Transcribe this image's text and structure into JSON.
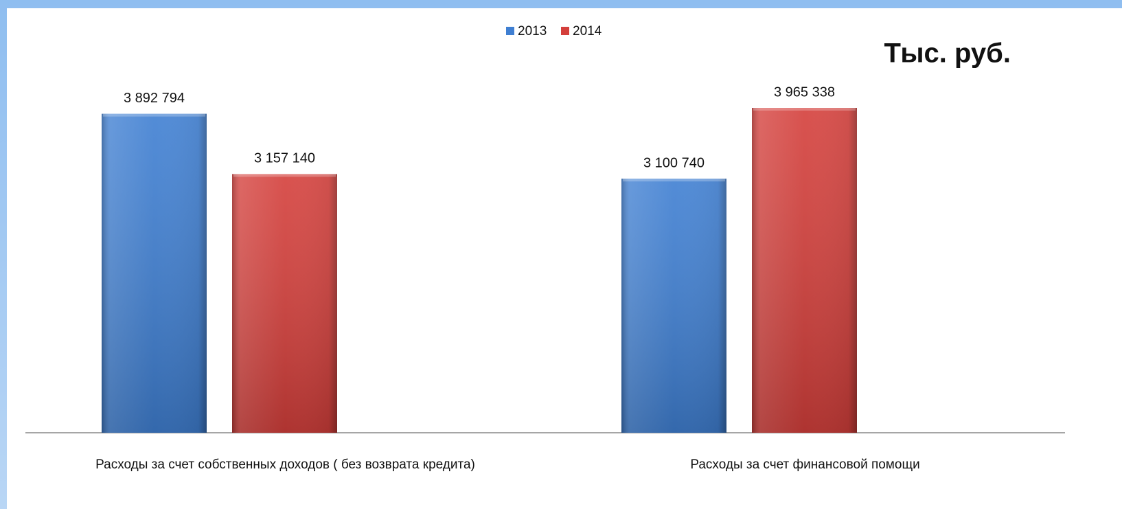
{
  "chart_data": {
    "type": "bar",
    "annotation": "Тыс. руб.",
    "categories": [
      "Расходы за счет собственных доходов ( без возврата кредита)",
      "Расходы за счет финансовой помощи"
    ],
    "series": [
      {
        "name": "2013",
        "color": "#3f7fd2",
        "values": [
          3892794,
          3100740
        ],
        "value_labels": [
          "3 892 794",
          "3 100 740"
        ]
      },
      {
        "name": "2014",
        "color": "#d43f3b",
        "values": [
          3157140,
          3965338
        ],
        "value_labels": [
          "3 157 140",
          "3 965 338"
        ]
      }
    ],
    "legend": "top"
  }
}
